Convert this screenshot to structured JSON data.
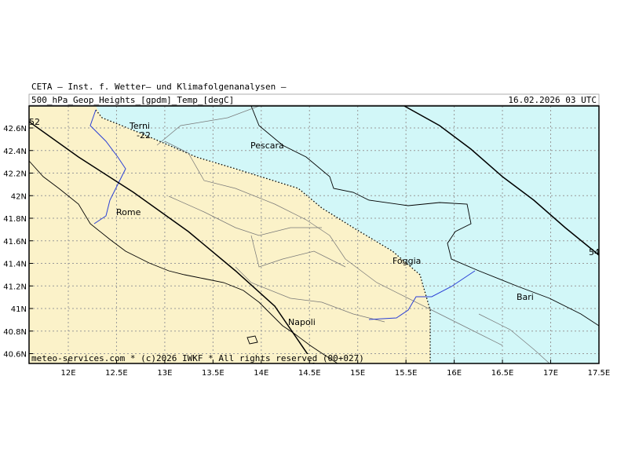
{
  "header": {
    "institute": "CETA — Inst. f. Wetter— und Klimafolgenanalysen —",
    "product": "500_hPa_Geop_Heights_[gpdm]_Temp_[degC]",
    "valid_time": "16.02.2026 03 UTC"
  },
  "footer": "meteo-services.com * (c)2026 IWKF * All rights reserved (00+027)",
  "longitude_labels": [
    "12E",
    "12.5E",
    "13E",
    "13.5E",
    "14E",
    "14.5E",
    "15E",
    "15.5E",
    "16E",
    "16.5E",
    "17E",
    "17.5E"
  ],
  "latitude_labels": [
    "42.6N",
    "42.4N",
    "42.2N",
    "42N",
    "41.8N",
    "41.6N",
    "41.4N",
    "41.2N",
    "41N",
    "40.8N",
    "40.6N"
  ],
  "places": [
    "Terni",
    "Pescara",
    "Rome",
    "Foggia",
    "Napoli",
    "Bari"
  ],
  "contour_labels": [
    "52",
    "54",
    "-22"
  ]
}
